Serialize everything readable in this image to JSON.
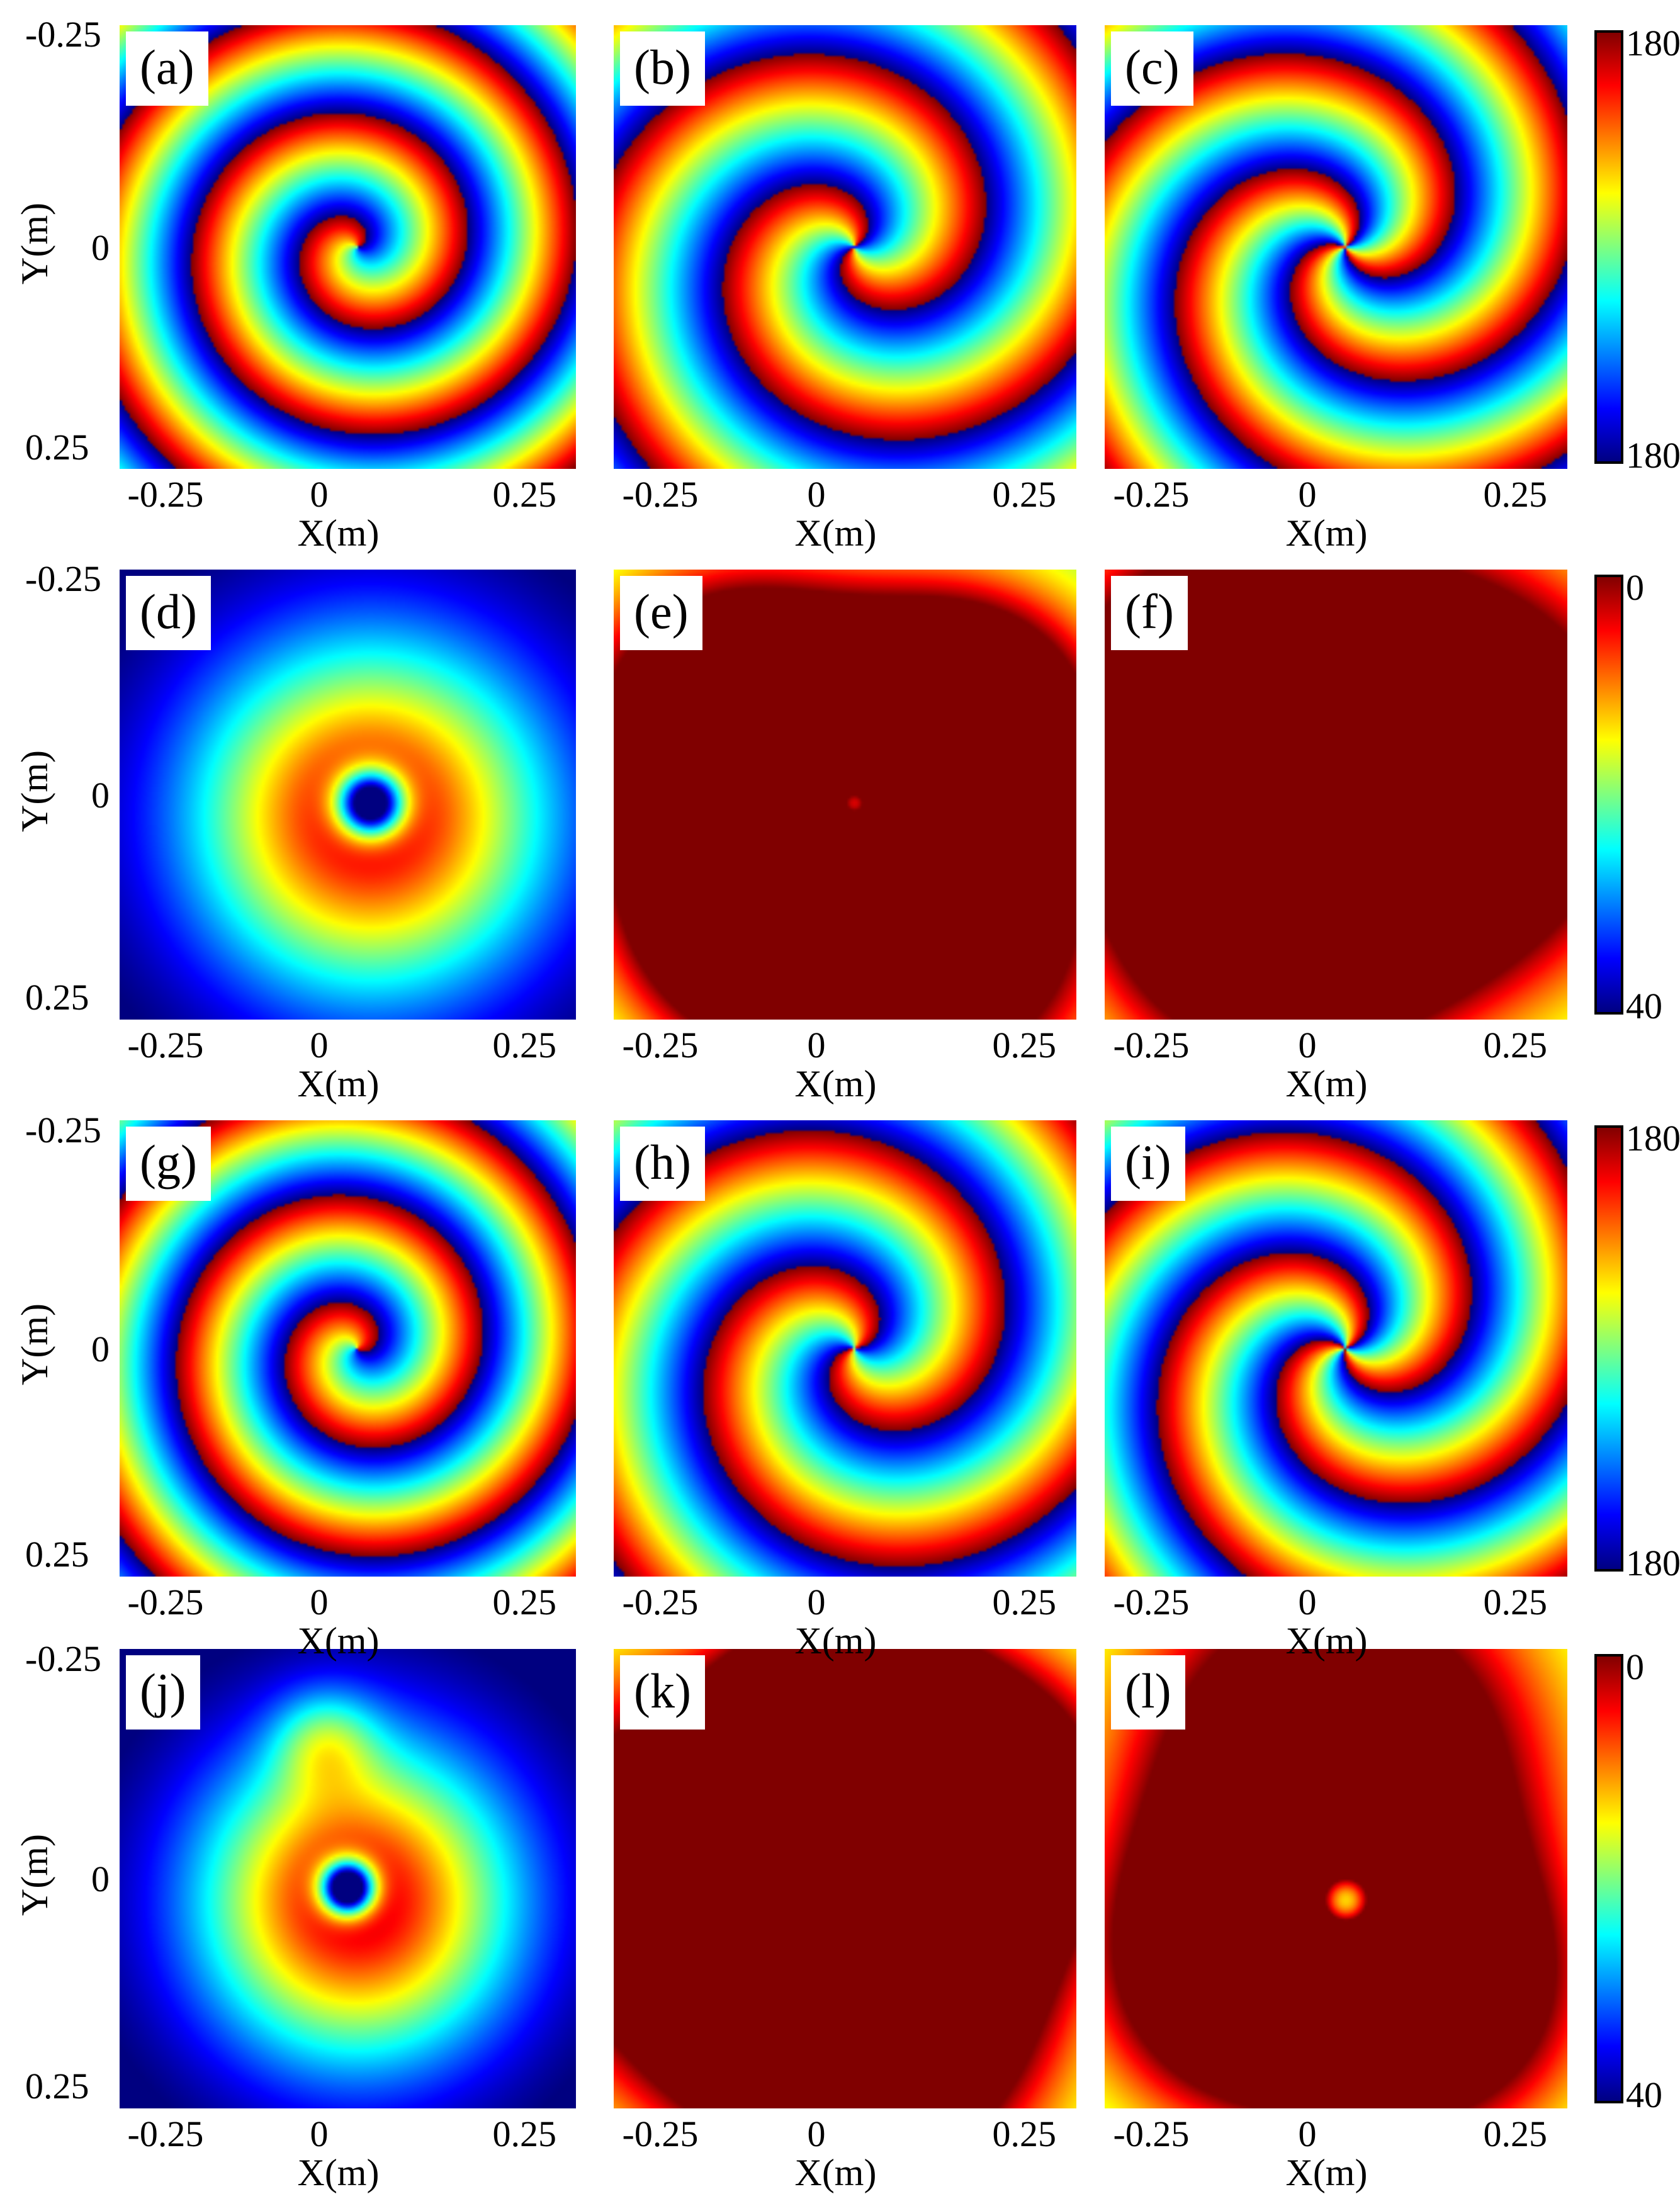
{
  "chart_data": [
    {
      "type": "heatmap",
      "panel_label": "(a)",
      "kind": "phase",
      "xlabel": "X(m)",
      "ylabel": "Y(m)",
      "xticks": [
        "-0.25",
        "0",
        "0.25"
      ],
      "yticks": [
        "-0.25",
        "0",
        "0.25"
      ]
    },
    {
      "type": "heatmap",
      "panel_label": "(b)",
      "kind": "phase",
      "xlabel": "X(m)",
      "ylabel": "",
      "xticks": [
        "-0.25",
        "0",
        "0.25"
      ],
      "yticks": []
    },
    {
      "type": "heatmap",
      "panel_label": "(c)",
      "kind": "phase",
      "xlabel": "X(m)",
      "ylabel": "",
      "xticks": [
        "-0.25",
        "0",
        "0.25"
      ],
      "yticks": []
    },
    {
      "type": "heatmap",
      "panel_label": "(d)",
      "kind": "amplitude",
      "xlabel": "X(m)",
      "ylabel": "Y(m)",
      "xticks": [
        "-0.25",
        "0",
        "0.25"
      ],
      "yticks": [
        "-0.25",
        "0",
        "0.25"
      ]
    },
    {
      "type": "heatmap",
      "panel_label": "(e)",
      "kind": "amplitude",
      "xlabel": "X(m)",
      "ylabel": "",
      "xticks": [
        "-0.25",
        "0",
        "0.25"
      ],
      "yticks": []
    },
    {
      "type": "heatmap",
      "panel_label": "(f)",
      "kind": "amplitude",
      "xlabel": "X(m)",
      "ylabel": "",
      "xticks": [
        "-0.25",
        "0",
        "0.25"
      ],
      "yticks": []
    },
    {
      "type": "heatmap",
      "panel_label": "(g)",
      "kind": "phase",
      "xlabel": "X(m)",
      "ylabel": "Y(m)",
      "xticks": [
        "-0.25",
        "0",
        "0.25"
      ],
      "yticks": [
        "-0.25",
        "0",
        "0.25"
      ]
    },
    {
      "type": "heatmap",
      "panel_label": "(h)",
      "kind": "phase",
      "xlabel": "X(m)",
      "ylabel": "",
      "xticks": [
        "-0.25",
        "0",
        "0.25"
      ],
      "yticks": []
    },
    {
      "type": "heatmap",
      "panel_label": "(i)",
      "kind": "phase",
      "xlabel": "X(m)",
      "ylabel": "",
      "xticks": [
        "-0.25",
        "0",
        "0.25"
      ],
      "yticks": []
    },
    {
      "type": "heatmap",
      "panel_label": "(j)",
      "kind": "amplitude",
      "xlabel": "X(m)",
      "ylabel": "Y(m)",
      "xticks": [
        "-0.25",
        "0",
        "0.25"
      ],
      "yticks": [
        "-0.25",
        "0",
        "0.25"
      ]
    },
    {
      "type": "heatmap",
      "panel_label": "(k)",
      "kind": "amplitude",
      "xlabel": "X(m)",
      "ylabel": "",
      "xticks": [
        "-0.25",
        "0",
        "0.25"
      ],
      "yticks": []
    },
    {
      "type": "heatmap",
      "panel_label": "(l)",
      "kind": "amplitude",
      "xlabel": "X(m)",
      "ylabel": "",
      "xticks": [
        "-0.25",
        "0",
        "0.25"
      ],
      "yticks": []
    }
  ],
  "colorbars": [
    {
      "kind": "phase",
      "top_label": "180",
      "bottom_label": "180",
      "range": [
        -180,
        180
      ],
      "colormap": "jet"
    },
    {
      "kind": "amplitude",
      "top_label": "0",
      "bottom_label": "40",
      "range": [
        -40,
        0
      ],
      "colormap": "jet"
    },
    {
      "kind": "phase",
      "top_label": "180",
      "bottom_label": "180",
      "range": [
        -180,
        180
      ],
      "colormap": "jet"
    },
    {
      "kind": "amplitude",
      "top_label": "0",
      "bottom_label": "40",
      "range": [
        -40,
        0
      ],
      "colormap": "jet"
    }
  ],
  "colors": {
    "jet": [
      "#00007f",
      "#0000ff",
      "#007fff",
      "#00ffff",
      "#7fff7f",
      "#ffff00",
      "#ff7f00",
      "#ff0000",
      "#7f0000"
    ]
  }
}
